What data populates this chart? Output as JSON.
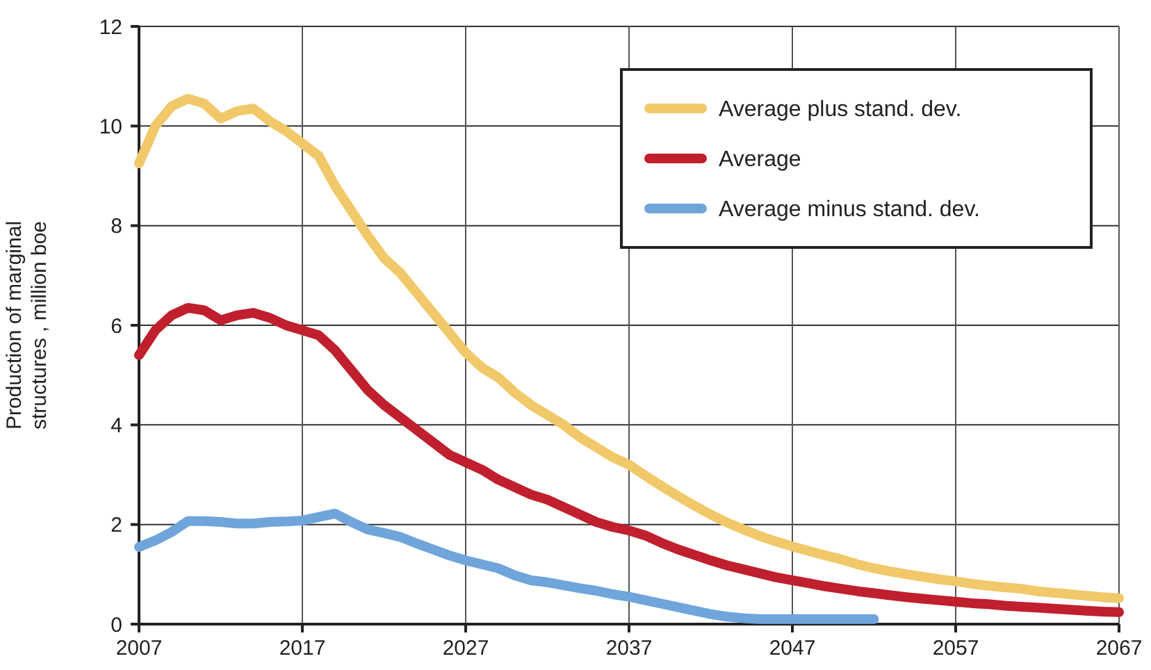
{
  "chart_data": {
    "type": "line",
    "ylabel": "Production of marginal\nstructures , million boe",
    "x": [
      2007,
      2008,
      2009,
      2010,
      2011,
      2012,
      2013,
      2014,
      2015,
      2016,
      2017,
      2018,
      2019,
      2020,
      2021,
      2022,
      2023,
      2024,
      2025,
      2026,
      2027,
      2028,
      2029,
      2030,
      2031,
      2032,
      2033,
      2034,
      2035,
      2036,
      2037,
      2038,
      2039,
      2040,
      2041,
      2042,
      2043,
      2044,
      2045,
      2046,
      2047,
      2048,
      2049,
      2050,
      2051,
      2052,
      2053,
      2054,
      2055,
      2056,
      2057,
      2058,
      2059,
      2060,
      2061,
      2062,
      2063,
      2064,
      2065,
      2066,
      2067
    ],
    "xlim": [
      2007,
      2067
    ],
    "xticks": [
      2007,
      2017,
      2027,
      2037,
      2047,
      2057,
      2067
    ],
    "ylim": [
      0,
      12
    ],
    "yticks": [
      0,
      2,
      4,
      6,
      8,
      10,
      12
    ],
    "grid": true,
    "legend": "top right",
    "marker": "none",
    "line_style": "solid",
    "series": [
      {
        "name": "Average plus stand. dev.",
        "color": "#f1c96a",
        "values": [
          9.25,
          10.0,
          10.4,
          10.55,
          10.45,
          10.15,
          10.3,
          10.35,
          10.1,
          9.9,
          9.65,
          9.4,
          8.8,
          8.3,
          7.8,
          7.35,
          7.05,
          6.65,
          6.25,
          5.85,
          5.45,
          5.15,
          4.95,
          4.65,
          4.4,
          4.2,
          4.0,
          3.75,
          3.55,
          3.35,
          3.2,
          2.98,
          2.77,
          2.57,
          2.38,
          2.2,
          2.04,
          1.9,
          1.77,
          1.66,
          1.56,
          1.47,
          1.38,
          1.3,
          1.2,
          1.12,
          1.06,
          1.0,
          0.95,
          0.9,
          0.86,
          0.81,
          0.77,
          0.74,
          0.71,
          0.66,
          0.63,
          0.6,
          0.57,
          0.54,
          0.52
        ]
      },
      {
        "name": "Average",
        "color": "#c01f2d",
        "values": [
          5.4,
          5.9,
          6.2,
          6.35,
          6.3,
          6.1,
          6.2,
          6.25,
          6.15,
          6.0,
          5.9,
          5.8,
          5.5,
          5.1,
          4.7,
          4.4,
          4.15,
          3.9,
          3.65,
          3.4,
          3.25,
          3.1,
          2.9,
          2.75,
          2.6,
          2.5,
          2.35,
          2.2,
          2.05,
          1.95,
          1.88,
          1.78,
          1.63,
          1.5,
          1.39,
          1.28,
          1.18,
          1.1,
          1.02,
          0.94,
          0.88,
          0.82,
          0.76,
          0.71,
          0.66,
          0.62,
          0.58,
          0.54,
          0.51,
          0.48,
          0.45,
          0.42,
          0.4,
          0.37,
          0.35,
          0.33,
          0.31,
          0.29,
          0.27,
          0.25,
          0.24
        ]
      },
      {
        "name": "Average minus stand. dev.",
        "color": "#6fa5da",
        "values": [
          1.55,
          1.68,
          1.85,
          2.07,
          2.07,
          2.05,
          2.02,
          2.02,
          2.05,
          2.06,
          2.08,
          2.15,
          2.22,
          2.05,
          1.9,
          1.83,
          1.75,
          1.62,
          1.5,
          1.38,
          1.28,
          1.2,
          1.12,
          0.98,
          0.88,
          0.84,
          0.78,
          0.72,
          0.67,
          0.6,
          0.55,
          0.48,
          0.41,
          0.34,
          0.27,
          0.2,
          0.15,
          0.12,
          0.1,
          0.1,
          0.1,
          0.1,
          0.1,
          0.1,
          0.1,
          0.1,
          null,
          null,
          null,
          null,
          null,
          null,
          null,
          null,
          null,
          null,
          null,
          null,
          null,
          null,
          null
        ]
      }
    ]
  }
}
